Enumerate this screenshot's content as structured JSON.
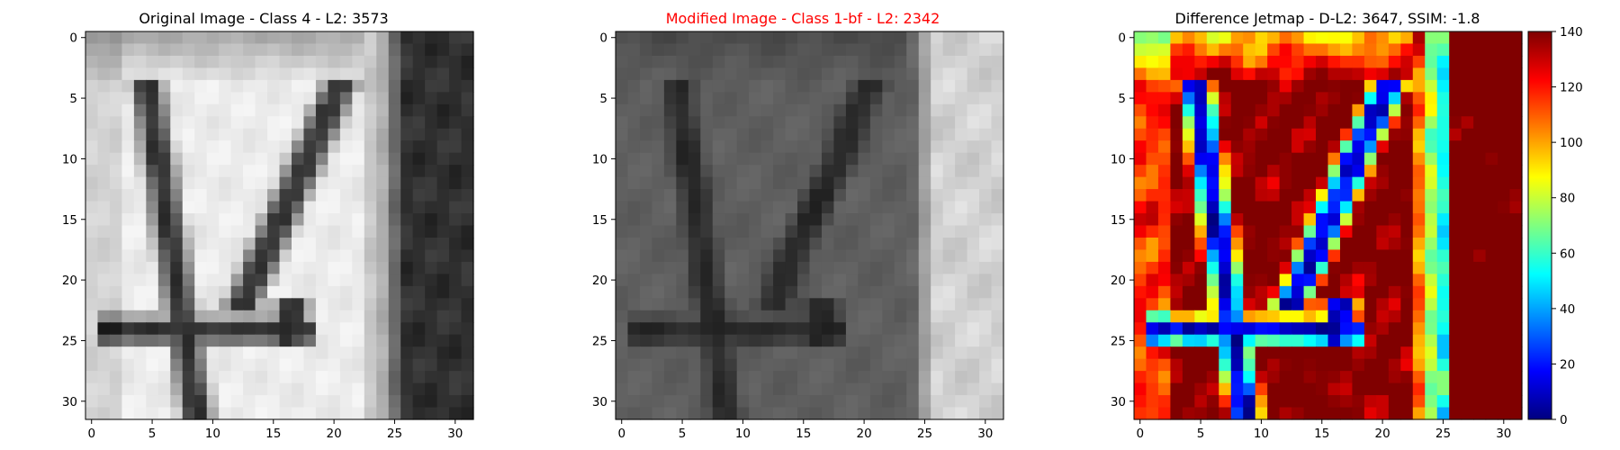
{
  "chart_data": [
    {
      "type": "heatmap",
      "title": "Original Image - Class 4 - L2: 3573",
      "title_color": "#000000",
      "colormap": "gray",
      "xlim": [
        0,
        31
      ],
      "ylim": [
        0,
        31
      ],
      "xticks": [
        "0",
        "5",
        "10",
        "15",
        "20",
        "25",
        "30"
      ],
      "yticks": [
        "0",
        "5",
        "10",
        "15",
        "20",
        "25",
        "30"
      ],
      "grid": false,
      "depicts": "bright bold digit 4 on light background, dark band at right"
    },
    {
      "type": "heatmap",
      "title": "Modified Image - Class 1-bf - L2: 2342",
      "title_color": "#ff0000",
      "colormap": "gray",
      "xlim": [
        0,
        31
      ],
      "ylim": [
        0,
        31
      ],
      "xticks": [
        "0",
        "5",
        "10",
        "15",
        "20",
        "25",
        "30"
      ],
      "yticks": [
        "0",
        "5",
        "10",
        "15",
        "20",
        "25",
        "30"
      ],
      "grid": false,
      "depicts": "faint digit 4 on dark gray background, bright band at right"
    },
    {
      "type": "heatmap",
      "title": "Difference Jetmap - D-L2: 3647, SSIM: -1.8",
      "title_color": "#000000",
      "colormap": "jet",
      "xlim": [
        0,
        31
      ],
      "ylim": [
        0,
        31
      ],
      "xticks": [
        "0",
        "5",
        "10",
        "15",
        "20",
        "25",
        "30"
      ],
      "yticks": [
        "0",
        "5",
        "10",
        "15",
        "20",
        "25",
        "30"
      ],
      "colorbar": {
        "range": [
          0,
          140
        ],
        "ticks": [
          "0",
          "20",
          "40",
          "60",
          "80",
          "100",
          "120",
          "140"
        ]
      },
      "grid": false
    }
  ]
}
